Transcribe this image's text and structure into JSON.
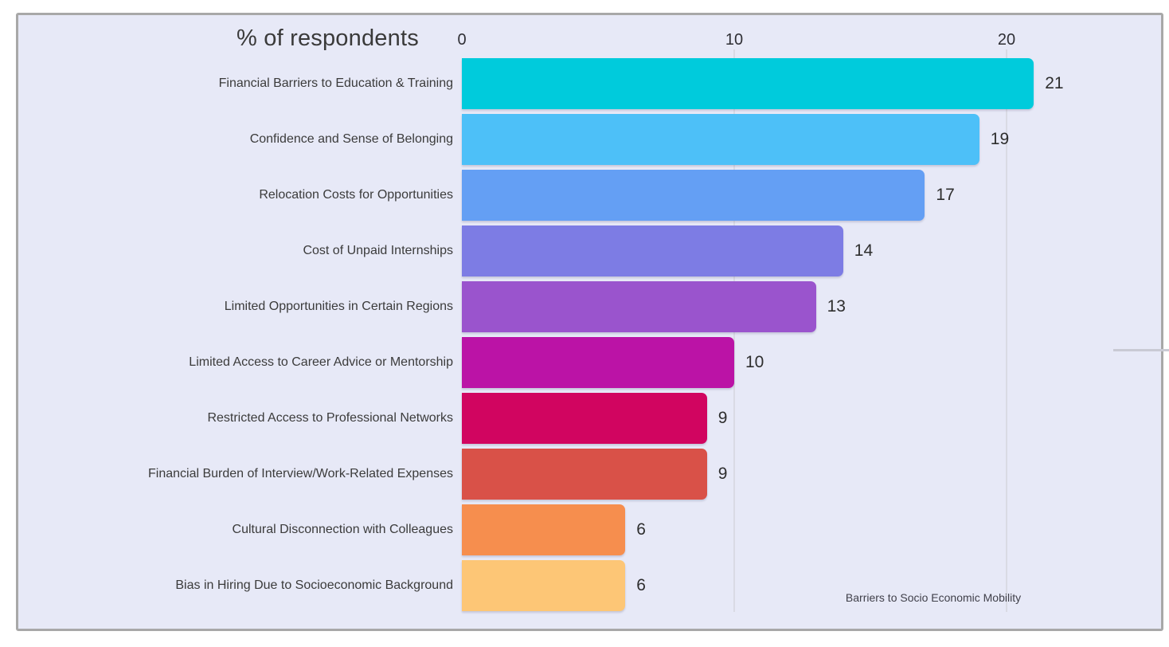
{
  "window": {
    "background_color": "#ffffff"
  },
  "card": {
    "background_color": "#e7e9f7",
    "border_color": "#a8a8a8"
  },
  "chart_data": {
    "type": "bar",
    "orientation": "horizontal",
    "title": "% of respondents",
    "footer_label": "Barriers to Socio Economic Mobility",
    "categories": [
      "Financial Barriers to Education & Training",
      "Confidence and Sense of Belonging",
      "Relocation Costs for Opportunities",
      "Cost of Unpaid Internships",
      "Limited Opportunities in Certain Regions",
      "Limited Access to Career Advice or Mentorship",
      "Restricted Access to Professional Networks",
      "Financial Burden of Interview/Work-Related Expenses",
      "Cultural Disconnection with Colleagues",
      "Bias in Hiring Due to Socioeconomic Background"
    ],
    "values": [
      21,
      19,
      17,
      14,
      13,
      10,
      9,
      9,
      6,
      6
    ],
    "value_labels": [
      "21",
      "19",
      "17",
      "14",
      "13",
      "10",
      "9",
      "9",
      "6",
      "6"
    ],
    "bar_colors": [
      "#00cbdc",
      "#4dc0f8",
      "#649ff4",
      "#7d7ce4",
      "#9a54cd",
      "#bb13a6",
      "#d10560",
      "#d95148",
      "#f68e4e",
      "#fdc676"
    ],
    "x_ticks": [
      "0",
      "10",
      "20"
    ],
    "x_tick_values": [
      0,
      10,
      20
    ],
    "xlim": [
      0,
      25.6
    ],
    "grid": "vertical",
    "gridline_color": "#d9dae4",
    "legend": "none",
    "text_color": "#3b3b3b"
  }
}
